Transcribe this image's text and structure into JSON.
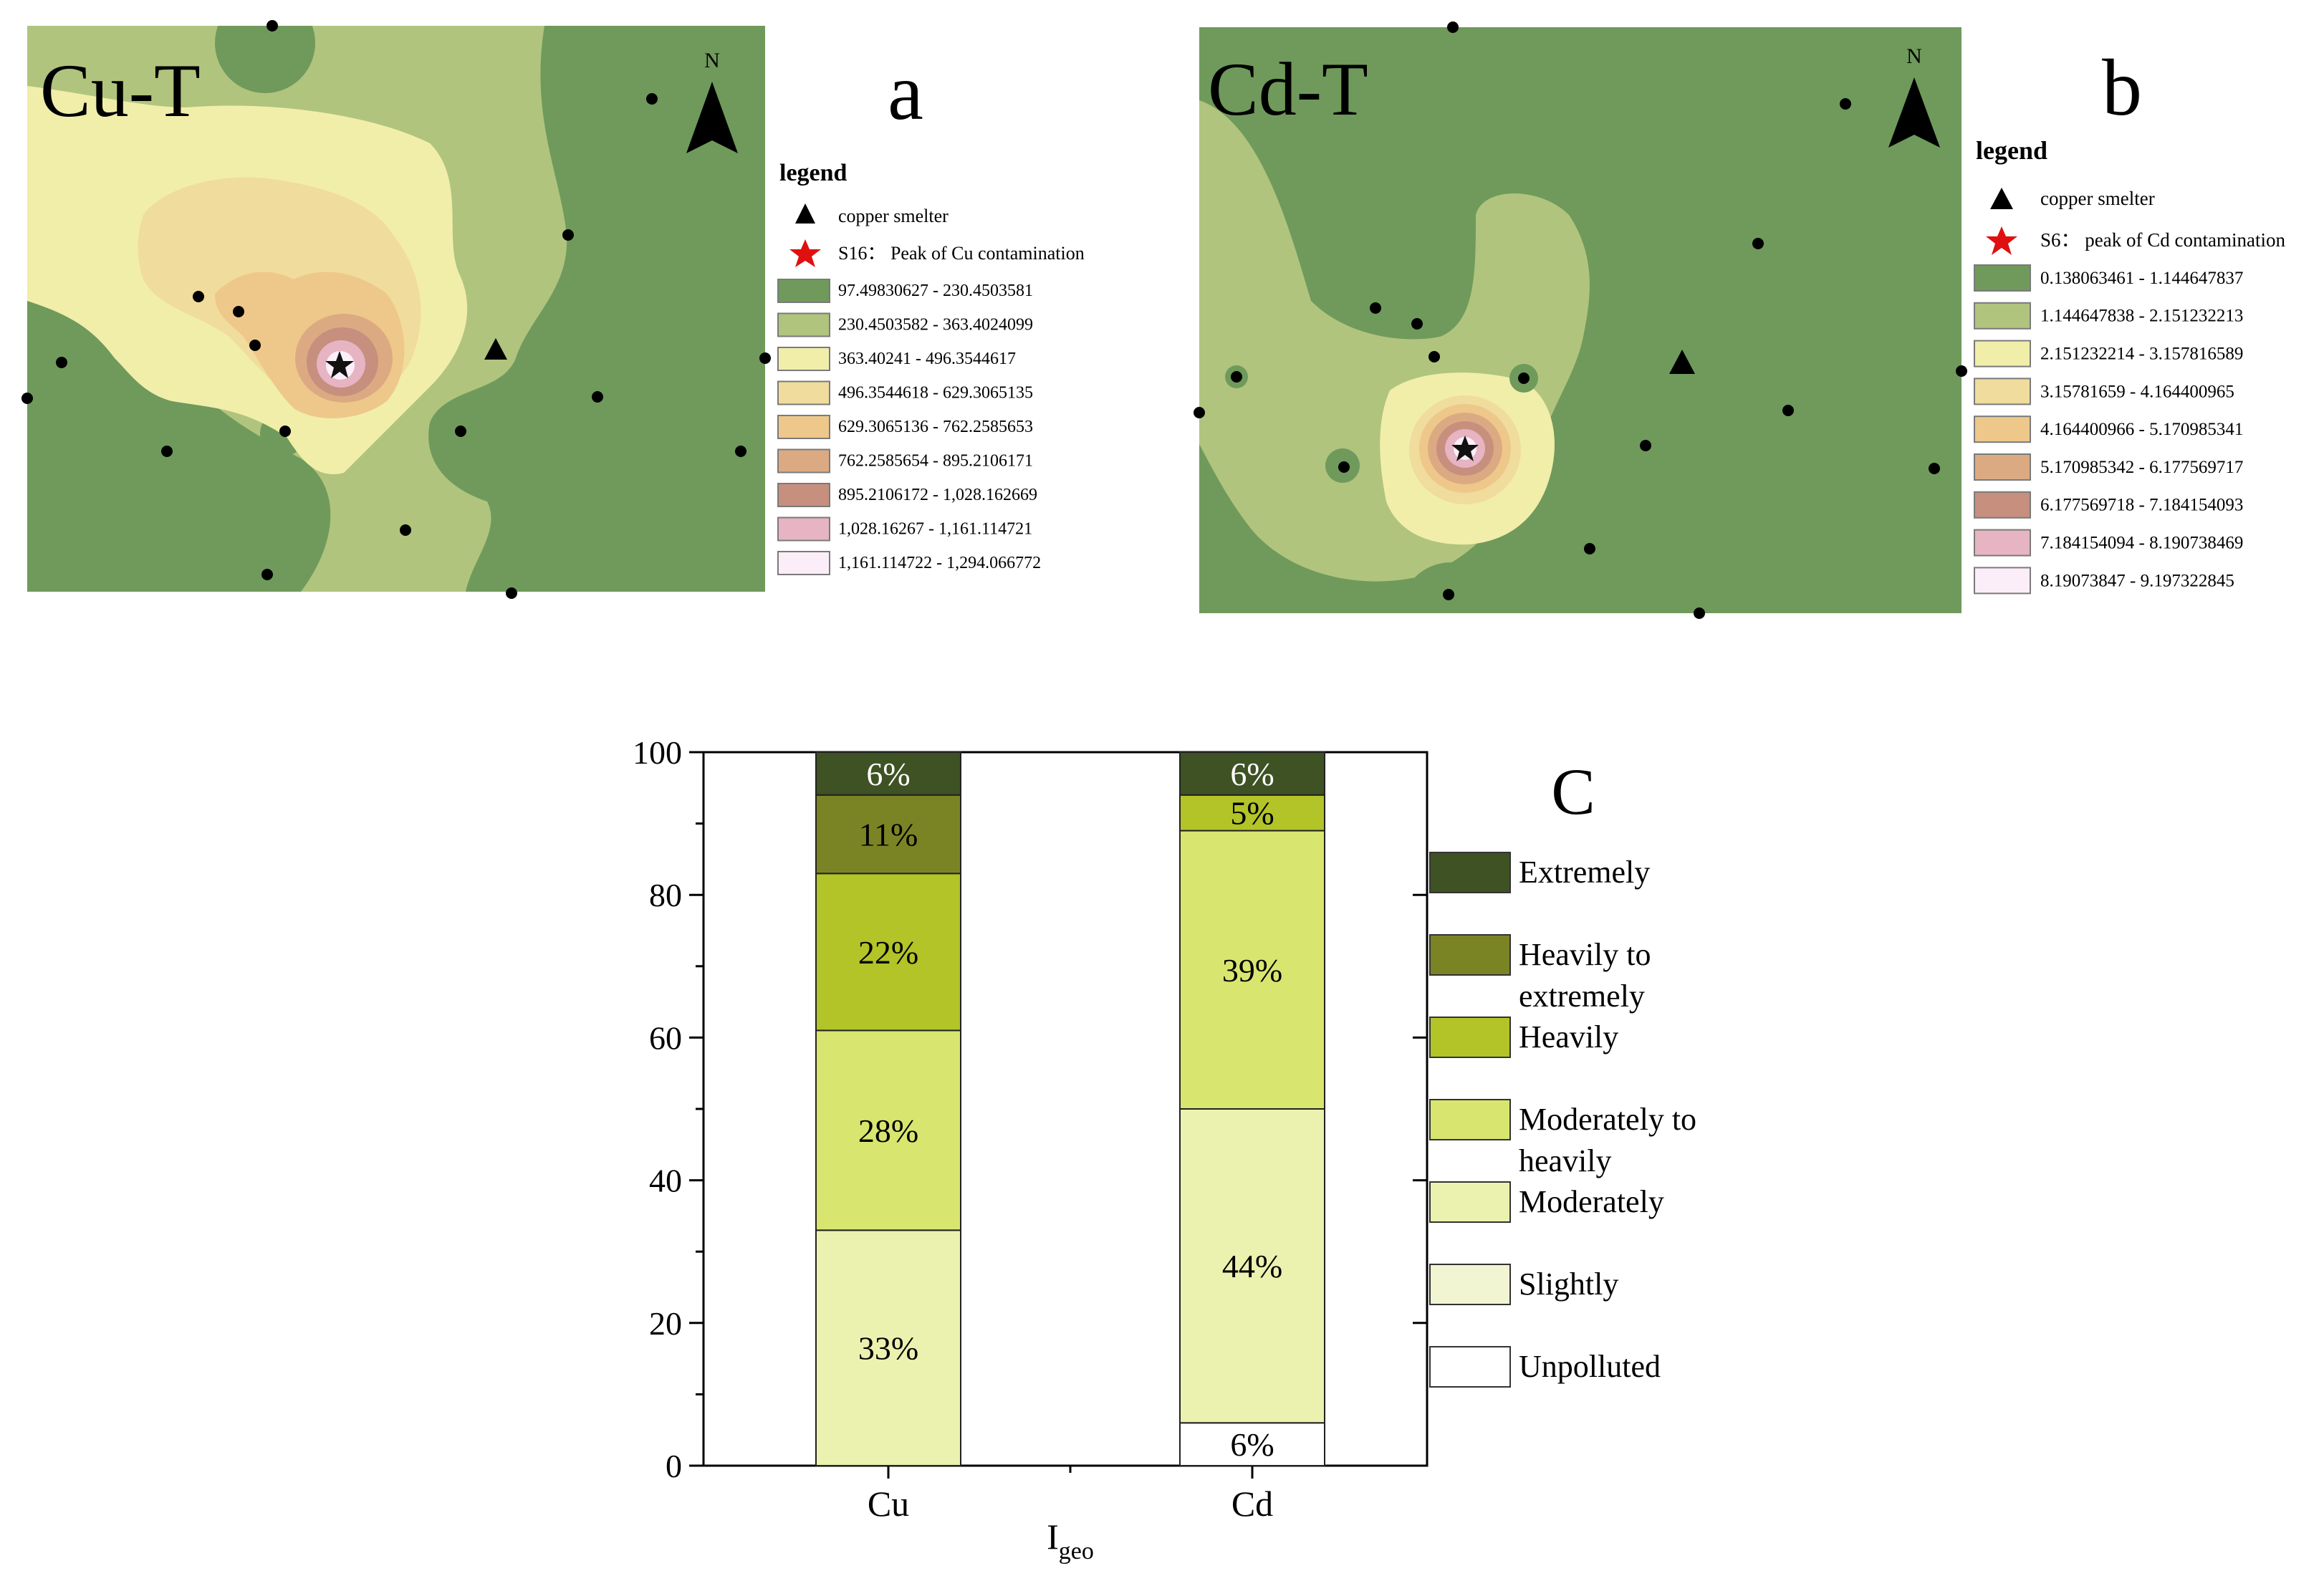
{
  "panel_a": {
    "title": "Cu-T",
    "letter": "a",
    "north": "N",
    "legend_title": "legend",
    "smelter_label": "copper smelter",
    "peak_label": "S16： Peak of Cu contamination",
    "classes": [
      {
        "label": "97.49830627 - 230.4503581",
        "color": "#6f9a5b"
      },
      {
        "label": "230.4503582 - 363.4024099",
        "color": "#b0c47e"
      },
      {
        "label": "363.40241 - 496.3544617",
        "color": "#f1eeaa"
      },
      {
        "label": "496.3544618 - 629.3065135",
        "color": "#f0dc9c"
      },
      {
        "label": "629.3065136 - 762.2585653",
        "color": "#eec88a"
      },
      {
        "label": "762.2585654 - 895.2106171",
        "color": "#dcaa82"
      },
      {
        "label": "895.2106172 - 1,028.162669",
        "color": "#c68f7e"
      },
      {
        "label": "1,028.16267 - 1,161.114721",
        "color": "#e6b4c2"
      },
      {
        "label": "1,161.114722 - 1,294.066772",
        "color": "#fbeef8"
      }
    ]
  },
  "panel_b": {
    "title": "Cd-T",
    "letter": "b",
    "north": "N",
    "legend_title": "legend",
    "smelter_label": "copper smelter",
    "peak_label": "S6： peak of Cd contamination",
    "classes": [
      {
        "label": "0.138063461 - 1.144647837",
        "color": "#6f9a5b"
      },
      {
        "label": "1.144647838 - 2.151232213",
        "color": "#b0c47e"
      },
      {
        "label": "2.151232214 - 3.157816589",
        "color": "#f1eeaa"
      },
      {
        "label": "3.15781659 - 4.164400965",
        "color": "#f0dc9c"
      },
      {
        "label": "4.164400966 - 5.170985341",
        "color": "#eec88a"
      },
      {
        "label": "5.170985342 - 6.177569717",
        "color": "#dcaa82"
      },
      {
        "label": "6.177569718 - 7.184154093",
        "color": "#c68f7e"
      },
      {
        "label": "7.184154094 - 8.190738469",
        "color": "#e6b4c2"
      },
      {
        "label": "8.19073847 - 9.197322845",
        "color": "#fbeef8"
      }
    ]
  },
  "chart_data": {
    "type": "bar",
    "stacked": true,
    "title": "C",
    "categories": [
      "Cu",
      "Cd"
    ],
    "xlabel_main": "I",
    "xlabel_sub": "geo",
    "ylabel": "",
    "ylim": [
      0,
      100
    ],
    "yticks": [
      "0",
      "20",
      "40",
      "60",
      "80",
      "100"
    ],
    "series": [
      {
        "name": "Unpolluted",
        "color": "#ffffff",
        "values": [
          0,
          6
        ],
        "labels": [
          "",
          "6%"
        ]
      },
      {
        "name": "Slightly",
        "color": "#f2f5d2",
        "values": [
          0,
          0
        ],
        "labels": [
          "",
          ""
        ]
      },
      {
        "name": "Moderately",
        "color": "#ebf2af",
        "values": [
          33,
          44
        ],
        "labels": [
          "33%",
          "44%"
        ]
      },
      {
        "name": "Moderately to heavily",
        "color": "#d8e670",
        "values": [
          28,
          39
        ],
        "labels": [
          "28%",
          "39%"
        ]
      },
      {
        "name": "Heavily",
        "color": "#b2c428",
        "values": [
          22,
          5
        ],
        "labels": [
          "22%",
          "5%"
        ]
      },
      {
        "name": "Heavily to extremely",
        "color": "#7b8424",
        "values": [
          11,
          0
        ],
        "labels": [
          "11%",
          ""
        ]
      },
      {
        "name": "Extremely",
        "color": "#3e5224",
        "values": [
          6,
          6
        ],
        "labels": [
          "6%",
          "6%"
        ]
      }
    ],
    "legend": [
      {
        "name": "Extremely",
        "color": "#3e5224",
        "lines": [
          "Extremely"
        ]
      },
      {
        "name": "Heavily to extremely",
        "color": "#7b8424",
        "lines": [
          "Heavily to",
          "extremely"
        ]
      },
      {
        "name": "Heavily",
        "color": "#b2c428",
        "lines": [
          "Heavily"
        ]
      },
      {
        "name": "Moderately to heavily",
        "color": "#d8e670",
        "lines": [
          "Moderately to",
          "heavily"
        ]
      },
      {
        "name": "Moderately",
        "color": "#ebf2af",
        "lines": [
          "Moderately"
        ]
      },
      {
        "name": "Slightly",
        "color": "#f2f5d2",
        "lines": [
          "Slightly"
        ]
      },
      {
        "name": "Unpolluted",
        "color": "#ffffff",
        "lines": [
          "Unpolluted"
        ]
      }
    ]
  }
}
